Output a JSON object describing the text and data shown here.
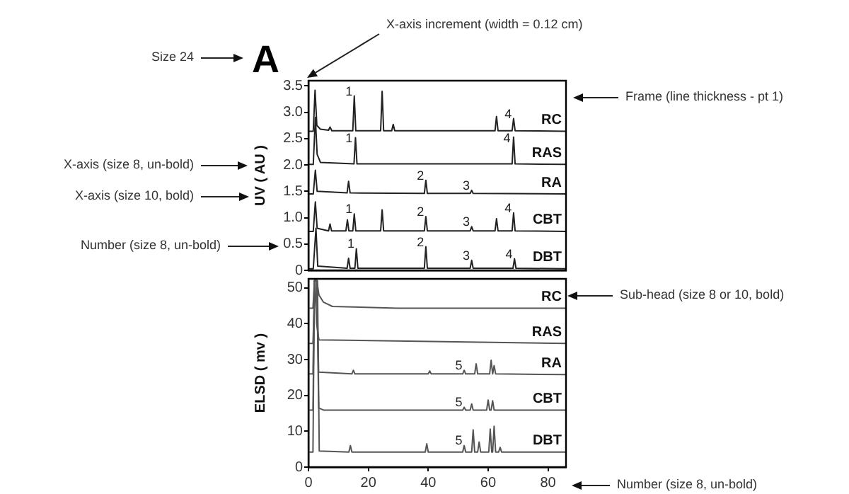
{
  "chart_data": [
    {
      "type": "line",
      "title": "A",
      "ylabel": "UV ( AU )",
      "xlim": [
        0,
        86
      ],
      "ylim": [
        0,
        3.6
      ],
      "yticks": [
        0,
        0.5,
        {
          "value": 1,
          "label": "1.0"
        },
        1.5,
        {
          "value": 2,
          "label": "2.0"
        },
        2.5,
        {
          "value": 3,
          "label": "3.0"
        },
        3.5
      ],
      "tick_labels": "y",
      "grid": false,
      "legend": false,
      "series": [
        {
          "name": "RC",
          "color": "#222222",
          "x": [
            0,
            1.6,
            2.2,
            2.8,
            4,
            6.7,
            7.2,
            7.8,
            14.8,
            15.3,
            15.8,
            24.1,
            24.6,
            25.1,
            27.8,
            28.3,
            28.8,
            62.3,
            62.8,
            63.3,
            68,
            68.5,
            69,
            86
          ],
          "values": [
            2.64,
            2.64,
            3.42,
            2.75,
            2.68,
            2.66,
            2.72,
            2.65,
            2.65,
            3.31,
            2.65,
            2.65,
            3.4,
            2.65,
            2.65,
            2.77,
            2.65,
            2.65,
            2.92,
            2.65,
            2.65,
            2.88,
            2.65,
            2.64
          ]
        },
        {
          "name": "RAS",
          "color": "#222222",
          "x": [
            0,
            1.6,
            2.3,
            2.9,
            4,
            15.2,
            15.7,
            16.2,
            68,
            68.5,
            69,
            86
          ],
          "values": [
            2.01,
            2.01,
            2.9,
            2.2,
            2.05,
            2.02,
            2.52,
            2.02,
            2.02,
            2.53,
            2.02,
            2.01
          ]
        },
        {
          "name": "RA",
          "color": "#222222",
          "x": [
            0,
            1.6,
            2.3,
            2.9,
            12.9,
            13.4,
            13.9,
            38.7,
            39.2,
            39.7,
            54,
            54.5,
            55,
            86
          ],
          "values": [
            1.45,
            1.45,
            1.9,
            1.5,
            1.47,
            1.69,
            1.47,
            1.46,
            1.71,
            1.46,
            1.46,
            1.52,
            1.46,
            1.45
          ]
        },
        {
          "name": "CBT",
          "color": "#222222",
          "x": [
            0,
            1.6,
            2.3,
            2.9,
            6.7,
            7.2,
            7.7,
            12.5,
            13,
            13.5,
            14.8,
            15.3,
            15.8,
            24.1,
            24.6,
            25.1,
            38.7,
            39.2,
            39.7,
            54,
            54.5,
            55,
            62.3,
            62.8,
            63.3,
            68,
            68.5,
            69,
            86
          ],
          "values": [
            0.74,
            0.74,
            1.3,
            0.8,
            0.75,
            0.88,
            0.75,
            0.75,
            0.96,
            0.75,
            0.75,
            1.07,
            0.75,
            0.75,
            1.15,
            0.75,
            0.75,
            1.02,
            0.75,
            0.75,
            0.83,
            0.75,
            0.75,
            0.98,
            0.75,
            0.75,
            1.09,
            0.75,
            0.74
          ]
        },
        {
          "name": "DBT",
          "color": "#222222",
          "x": [
            0,
            1.6,
            2.5,
            3.1,
            12.9,
            13.4,
            13.9,
            15.5,
            16,
            16.5,
            38.7,
            39.2,
            39.7,
            54,
            54.5,
            55,
            68.3,
            68.8,
            69.3,
            86
          ],
          "values": [
            0.03,
            0.03,
            0.8,
            0.08,
            0.04,
            0.23,
            0.04,
            0.04,
            0.41,
            0.04,
            0.04,
            0.45,
            0.04,
            0.04,
            0.19,
            0.04,
            0.04,
            0.22,
            0.04,
            0.03
          ]
        }
      ],
      "annotations": [
        {
          "text": "1",
          "x": 13.5,
          "y": 3.39
        },
        {
          "text": "4",
          "x": 66.7,
          "y": 2.96
        },
        {
          "text": "1",
          "x": 13.5,
          "y": 2.5
        },
        {
          "text": "4",
          "x": 66.3,
          "y": 2.5
        },
        {
          "text": "2",
          "x": 37.4,
          "y": 1.79
        },
        {
          "text": "3",
          "x": 52.7,
          "y": 1.6
        },
        {
          "text": "1",
          "x": 13.5,
          "y": 1.15
        },
        {
          "text": "2",
          "x": 37.4,
          "y": 1.1
        },
        {
          "text": "3",
          "x": 52.7,
          "y": 0.91
        },
        {
          "text": "4",
          "x": 66.7,
          "y": 1.17
        },
        {
          "text": "1",
          "x": 14.2,
          "y": 0.49
        },
        {
          "text": "2",
          "x": 37.4,
          "y": 0.53
        },
        {
          "text": "3",
          "x": 52.7,
          "y": 0.27
        },
        {
          "text": "4",
          "x": 67,
          "y": 0.3
        },
        "Size 24",
        "X-axis increment (width = 0.12 cm)",
        "Frame (line thickness - pt 1)",
        "X-axis (size 8, un-bold)",
        "X-axis (size 10, bold)",
        "Number (size 8, un-bold)"
      ]
    },
    {
      "type": "line",
      "ylabel": "ELSD ( mv )",
      "xlim": [
        0,
        86
      ],
      "xticks": [
        0,
        20,
        40,
        60,
        80
      ],
      "ylim": [
        0,
        52.5
      ],
      "yticks": [
        0,
        10,
        20,
        30,
        40,
        50
      ],
      "grid": false,
      "legend": false,
      "series": [
        {
          "name": "RC",
          "color": "#555555",
          "x": [
            0,
            1.5,
            2,
            2.8,
            3.5,
            5,
            8,
            30,
            86
          ],
          "values": [
            44.3,
            44.3,
            52,
            52,
            48,
            46,
            44.8,
            44.3,
            44.3
          ]
        },
        {
          "name": "RAS",
          "color": "#555555",
          "x": [
            0,
            1.5,
            2.2,
            2.7,
            3.5,
            86
          ],
          "values": [
            34.5,
            34.5,
            52,
            40,
            35.5,
            34.5
          ]
        },
        {
          "name": "RA",
          "color": "#555555",
          "x": [
            0,
            1.5,
            2,
            2.8,
            3.4,
            14.5,
            15,
            15.5,
            40,
            40.5,
            41,
            51.5,
            52,
            52.5,
            55.5,
            56,
            56.5,
            60.5,
            61,
            61.5,
            62,
            62.5,
            86
          ],
          "values": [
            26,
            26,
            52,
            52,
            26.5,
            26,
            27,
            26,
            26,
            26.8,
            26,
            26,
            27,
            26,
            26,
            28.8,
            26,
            26,
            29.8,
            26,
            28.3,
            26,
            25.8
          ]
        },
        {
          "name": "CBT",
          "color": "#555555",
          "x": [
            0,
            1.5,
            2,
            2.8,
            3.4,
            5,
            51.5,
            52,
            52.5,
            54,
            54.5,
            55,
            59.5,
            60,
            60.5,
            61,
            61.5,
            62,
            86
          ],
          "values": [
            15.9,
            15.9,
            52,
            52,
            16.5,
            15.9,
            15.9,
            16.7,
            15.9,
            15.9,
            17.6,
            15.9,
            15.9,
            18.7,
            15.9,
            15.9,
            18.5,
            15.9,
            15.9
          ]
        },
        {
          "name": "DBT",
          "color": "#555555",
          "x": [
            0,
            1.5,
            2,
            3,
            3.6,
            13.5,
            14,
            14.5,
            39,
            39.5,
            40,
            51.5,
            52,
            52.5,
            54.5,
            55,
            55.5,
            56.5,
            57,
            57.5,
            60.2,
            60.7,
            61.2,
            61.5,
            62,
            62.5,
            63.5,
            64,
            64.5,
            86
          ],
          "values": [
            4.2,
            4.2,
            52,
            52,
            4.5,
            4.2,
            6,
            4.2,
            4.2,
            6.5,
            4.2,
            4.2,
            6,
            4.2,
            4.2,
            10.4,
            4.2,
            4.2,
            7,
            4.2,
            4.2,
            10.6,
            4.2,
            4.2,
            11.4,
            4.2,
            4.2,
            5.5,
            4.2,
            4.2
          ]
        }
      ],
      "annotations": [
        {
          "text": "5",
          "x": 50.2,
          "y": 28.2
        },
        {
          "text": "5",
          "x": 50.2,
          "y": 17.9
        },
        {
          "text": "5",
          "x": 50.2,
          "y": 7.2
        },
        "Sub-head (size 8 or 10, bold)",
        "Number (size 8, un-bold)"
      ]
    }
  ]
}
